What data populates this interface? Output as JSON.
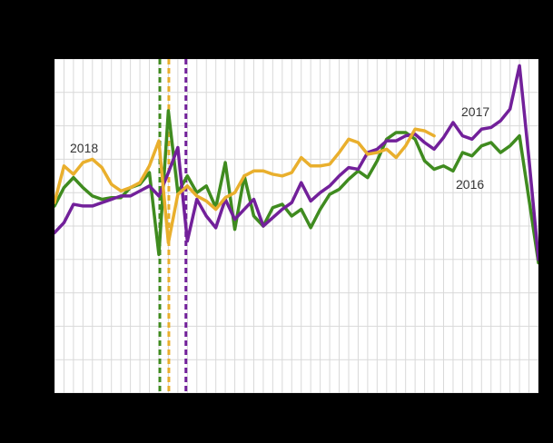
{
  "chart_data": {
    "type": "line",
    "title": "",
    "xlabel": "",
    "ylabel": "",
    "x_axis": {
      "unit": "week",
      "range": [
        1,
        52
      ],
      "tick_labels_visible": false
    },
    "y_axis": {
      "range_gridline_units": [
        0,
        10
      ],
      "gridline_count": 11,
      "tick_labels_visible": false
    },
    "note": "Chart margins are black with no visible title or axis tick labels. Y values are estimated in gridline units: 0 = bottom plot edge, 10 = top plot edge, one unit per horizontal gridline.",
    "legend_position": "inline-labels",
    "grid": true,
    "series": [
      {
        "name": "2016",
        "color": "#3f8b1f",
        "values": [
          5.6,
          6.15,
          6.45,
          6.15,
          5.9,
          5.8,
          5.85,
          5.85,
          6.15,
          6.25,
          6.6,
          4.15,
          8.45,
          6.0,
          6.5,
          6.0,
          6.2,
          5.55,
          6.9,
          4.9,
          6.5,
          5.3,
          5.0,
          5.55,
          5.65,
          5.3,
          5.5,
          4.95,
          5.5,
          5.95,
          6.1,
          6.4,
          6.65,
          6.45,
          6.95,
          7.6,
          7.8,
          7.8,
          7.6,
          6.95,
          6.7,
          6.8,
          6.65,
          7.2,
          7.1,
          7.4,
          7.5,
          7.2,
          7.4,
          7.7,
          5.8,
          3.9
        ]
      },
      {
        "name": "2017",
        "color": "#72209a",
        "values": [
          4.8,
          5.1,
          5.65,
          5.6,
          5.6,
          5.7,
          5.8,
          5.9,
          5.9,
          6.05,
          6.2,
          5.9,
          6.6,
          7.35,
          4.55,
          5.8,
          5.3,
          4.95,
          5.8,
          5.2,
          5.5,
          5.8,
          5.0,
          5.25,
          5.5,
          5.7,
          6.3,
          5.75,
          6.0,
          6.2,
          6.5,
          6.75,
          6.7,
          7.2,
          7.3,
          7.55,
          7.55,
          7.7,
          7.75,
          7.5,
          7.3,
          7.65,
          8.1,
          7.7,
          7.6,
          7.9,
          7.95,
          8.15,
          8.5,
          9.8,
          7.0,
          4.0
        ]
      },
      {
        "name": "2018",
        "color": "#e9af2d",
        "values": [
          5.7,
          6.8,
          6.55,
          6.9,
          7.0,
          6.75,
          6.25,
          6.05,
          6.15,
          6.3,
          6.8,
          7.55,
          4.5,
          5.95,
          6.2,
          5.9,
          5.75,
          5.5,
          5.85,
          6.0,
          6.5,
          6.65,
          6.65,
          6.55,
          6.5,
          6.6,
          7.05,
          6.8,
          6.8,
          6.85,
          7.2,
          7.6,
          7.5,
          7.15,
          7.2,
          7.3,
          7.05,
          7.4,
          7.9,
          7.85,
          7.7
        ]
      }
    ],
    "event_markers": [
      {
        "series": "2016",
        "week": 12.1,
        "style": "dashed-vertical",
        "color": "#3f8b1f"
      },
      {
        "series": "2018",
        "week": 13.05,
        "style": "dashed-vertical",
        "color": "#e9af2d"
      },
      {
        "series": "2017",
        "week": 14.85,
        "style": "dashed-vertical",
        "color": "#72209a"
      }
    ],
    "colors": {
      "page_background": "#000000",
      "plot_background": "#ffffff",
      "gridline": "#d9d9d9",
      "label_text": "#333333"
    }
  }
}
